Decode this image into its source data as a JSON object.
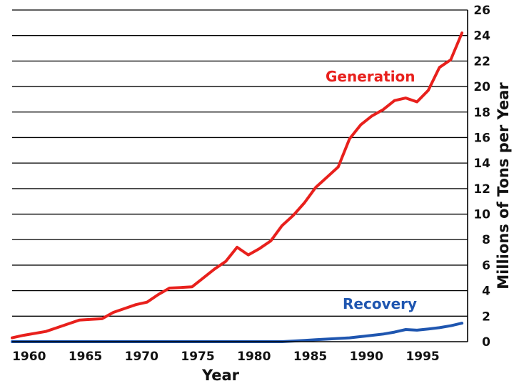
{
  "chart_data": {
    "type": "line",
    "title": "",
    "xlabel": "Year",
    "ylabel": "Millions of Tons per Year",
    "xlim": [
      1959,
      1999.5
    ],
    "ylim": [
      0,
      26
    ],
    "x_ticks": [
      1960,
      1965,
      1970,
      1975,
      1980,
      1985,
      1990,
      1995
    ],
    "y_ticks": [
      0,
      2,
      4,
      6,
      8,
      10,
      12,
      14,
      16,
      18,
      20,
      22,
      24,
      26
    ],
    "y_axis_side": "right",
    "grid": "horizontal",
    "legend": "inline labels",
    "series": [
      {
        "name": "Generation",
        "color": "#e8201c",
        "x": [
          1959,
          1960,
          1962,
          1963,
          1964,
          1965,
          1966,
          1967,
          1968,
          1969,
          1970,
          1971,
          1972,
          1973,
          1974,
          1975,
          1976,
          1977,
          1978,
          1979,
          1980,
          1981,
          1982,
          1983,
          1984,
          1985,
          1986,
          1987,
          1988,
          1989,
          1990,
          1991,
          1992,
          1993,
          1994,
          1995,
          1996,
          1997,
          1998,
          1999
        ],
        "values": [
          0.3,
          0.5,
          0.8,
          1.1,
          1.4,
          1.7,
          1.75,
          1.8,
          2.3,
          2.6,
          2.9,
          3.1,
          3.7,
          4.2,
          4.25,
          4.3,
          5.0,
          5.7,
          6.3,
          7.4,
          6.8,
          7.3,
          7.9,
          9.1,
          9.9,
          10.9,
          12.1,
          12.9,
          13.7,
          15.9,
          17.0,
          17.7,
          18.2,
          18.9,
          19.1,
          18.8,
          19.7,
          21.5,
          22.1,
          24.2
        ]
      },
      {
        "name": "Recovery",
        "color": "#1f56b0",
        "x": [
          1959,
          1965,
          1970,
          1975,
          1980,
          1983,
          1984,
          1985,
          1986,
          1987,
          1988,
          1989,
          1990,
          1991,
          1992,
          1993,
          1994,
          1995,
          1996,
          1997,
          1998,
          1999
        ],
        "values": [
          0,
          0,
          0,
          0,
          0,
          0,
          0.05,
          0.1,
          0.15,
          0.2,
          0.25,
          0.3,
          0.4,
          0.5,
          0.6,
          0.75,
          0.95,
          0.9,
          1.0,
          1.1,
          1.25,
          1.45
        ]
      }
    ]
  }
}
